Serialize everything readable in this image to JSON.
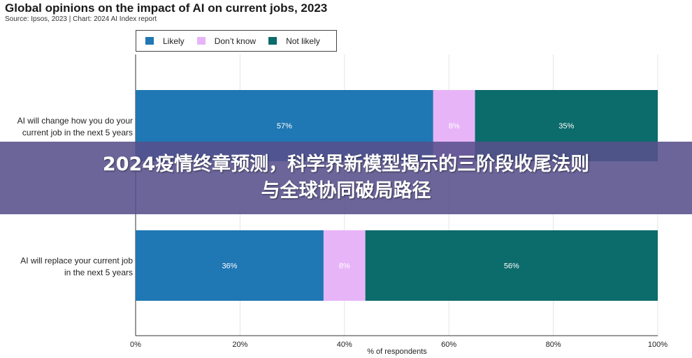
{
  "chart_data": {
    "type": "bar",
    "orientation": "horizontal",
    "stacked": true,
    "title": "Global opinions on the impact of AI on current jobs, 2023",
    "subtitle": "Source: Ipsos, 2023 | Chart: 2024 AI Index report",
    "xlabel": "% of respondents",
    "ylabel": "",
    "xlim": [
      0,
      100
    ],
    "xticks": [
      "0%",
      "20%",
      "40%",
      "60%",
      "80%",
      "100%"
    ],
    "grid": "vertical",
    "legend_position": "top-left",
    "categories": [
      "AI will change how you do your current job in the next 5 years",
      "AI will replace your current job in the next 5 years"
    ],
    "category_lines": [
      [
        "AI will change how you do your",
        "current job in the next 5 years"
      ],
      [
        "AI will replace your current job",
        "in the next 5 years"
      ]
    ],
    "series": [
      {
        "name": "Likely",
        "color": "#1f77b4",
        "values": [
          57,
          36
        ],
        "labels": [
          "57%",
          "36%"
        ]
      },
      {
        "name": "Don’t know",
        "color": "#e8b4f8",
        "values": [
          8,
          8
        ],
        "labels": [
          "8%",
          "8%"
        ]
      },
      {
        "name": "Not likely",
        "color": "#0c6b6b",
        "values": [
          35,
          56
        ],
        "labels": [
          "35%",
          "56%"
        ]
      }
    ]
  },
  "banner": {
    "line1": "2024疫情终章预测，科学界新模型揭示的三阶段收尾法则",
    "line2": "与全球协同破局路径"
  }
}
